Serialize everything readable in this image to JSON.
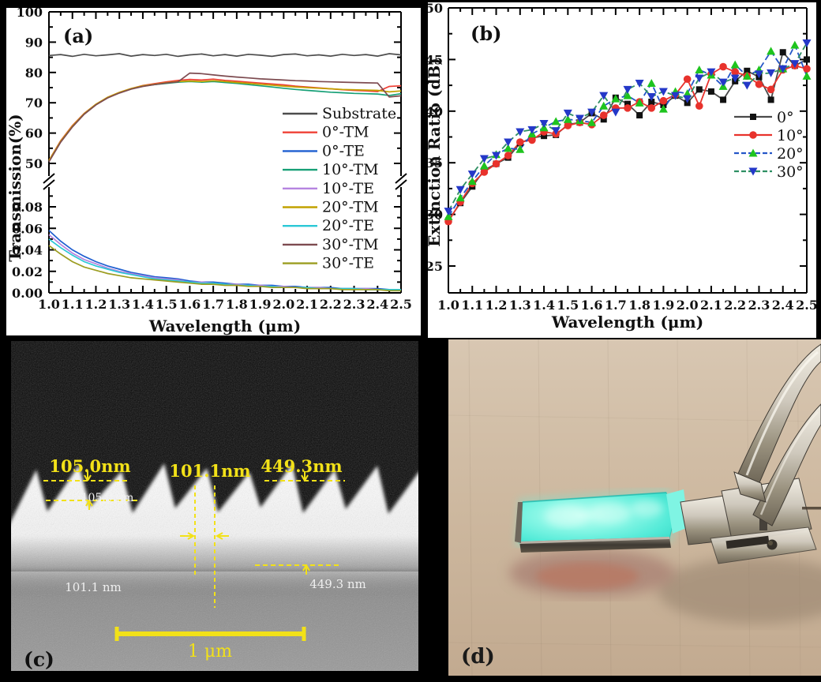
{
  "figure": {
    "panels": {
      "a": {
        "label": "(a)"
      },
      "b": {
        "label": "(b)"
      },
      "c": {
        "label": "(c)"
      },
      "d": {
        "label": "(d)"
      }
    }
  },
  "panel_c": {
    "label": "(c)",
    "annotation_color": "#f2e118",
    "measurements_top": [
      "105.0nm",
      "101.1nm",
      "449.3nm"
    ],
    "measurements_inner": [
      "105.0 nm",
      "101.1 nm",
      "449.3 nm"
    ],
    "scale_bar_label": "1 μm"
  },
  "panel_d": {
    "label": "(d)",
    "glow_color": "#55ecd9",
    "paper_color": "#cdb89f"
  },
  "chart_data": [
    {
      "panel": "a",
      "type": "line",
      "xlabel": "Wavelength (μm)",
      "ylabel": "Transmission(%)",
      "x_ticks": [
        1.0,
        1.1,
        1.2,
        1.3,
        1.4,
        1.5,
        1.6,
        1.7,
        1.8,
        1.9,
        2.0,
        2.1,
        2.2,
        2.3,
        2.4,
        2.5
      ],
      "x_minor_step": 0.05,
      "y_axis_broken": true,
      "y_upper": {
        "range": [
          50,
          100
        ],
        "ticks": [
          50,
          60,
          70,
          80,
          90,
          100
        ],
        "minor_ticks": [
          55,
          65,
          75,
          85,
          95
        ]
      },
      "y_lower": {
        "range": [
          0,
          0.09
        ],
        "ticks": [
          0.0,
          0.02,
          0.04,
          0.06,
          0.08
        ],
        "minor_ticks": [
          0.01,
          0.03,
          0.05,
          0.07,
          0.09
        ]
      },
      "legend_position": "middle-right",
      "grid": false,
      "x": [
        1.0,
        1.05,
        1.1,
        1.15,
        1.2,
        1.25,
        1.3,
        1.35,
        1.4,
        1.45,
        1.5,
        1.55,
        1.6,
        1.65,
        1.7,
        1.75,
        1.8,
        1.85,
        1.9,
        1.95,
        2.0,
        2.05,
        2.1,
        2.15,
        2.2,
        2.25,
        2.3,
        2.35,
        2.4,
        2.45,
        2.5
      ],
      "series": [
        {
          "name": "Substrate",
          "color": "#4d4d4d",
          "segment": "upper",
          "values": [
            85.6,
            85.9,
            85.3,
            86.0,
            85.5,
            85.8,
            86.2,
            85.4,
            85.9,
            85.6,
            86.0,
            85.3,
            85.8,
            86.1,
            85.5,
            85.9,
            85.4,
            86.0,
            85.7,
            85.3,
            85.9,
            86.1,
            85.5,
            85.8,
            85.4,
            86.0,
            85.6,
            85.9,
            85.4,
            86.2,
            85.8
          ]
        },
        {
          "name": "0°-TM",
          "color": "#ef4136",
          "segment": "upper",
          "values": [
            51.0,
            57.5,
            62.5,
            66.5,
            69.5,
            71.8,
            73.4,
            74.7,
            75.7,
            76.3,
            76.9,
            77.4,
            77.7,
            77.5,
            77.8,
            77.4,
            77.1,
            76.8,
            76.5,
            76.2,
            75.9,
            75.5,
            75.2,
            74.9,
            74.6,
            74.3,
            74.1,
            73.9,
            73.7,
            75.4,
            75.6
          ]
        },
        {
          "name": "0°-TE",
          "color": "#1f5fd0",
          "segment": "lower",
          "values": [
            0.058,
            0.048,
            0.04,
            0.034,
            0.029,
            0.025,
            0.022,
            0.019,
            0.017,
            0.015,
            0.014,
            0.013,
            0.011,
            0.01,
            0.01,
            0.009,
            0.008,
            0.008,
            0.007,
            0.007,
            0.006,
            0.006,
            0.005,
            0.005,
            0.005,
            0.004,
            0.004,
            0.004,
            0.004,
            0.003,
            0.003
          ]
        },
        {
          "name": "10°-TM",
          "color": "#17a077",
          "segment": "upper",
          "values": [
            50.8,
            57.2,
            62.2,
            66.3,
            69.4,
            71.7,
            73.3,
            74.6,
            75.5,
            76.0,
            76.4,
            76.8,
            77.0,
            76.8,
            77.0,
            76.7,
            76.4,
            76.0,
            75.6,
            75.2,
            74.8,
            74.4,
            74.1,
            73.8,
            73.5,
            73.3,
            73.1,
            73.0,
            72.9,
            72.4,
            73.0
          ]
        },
        {
          "name": "10°-TE",
          "color": "#b684e0",
          "segment": "lower",
          "values": [
            0.054,
            0.045,
            0.037,
            0.031,
            0.027,
            0.023,
            0.02,
            0.018,
            0.016,
            0.014,
            0.013,
            0.012,
            0.01,
            0.01,
            0.009,
            0.008,
            0.008,
            0.007,
            0.007,
            0.006,
            0.006,
            0.005,
            0.005,
            0.005,
            0.004,
            0.004,
            0.004,
            0.004,
            0.003,
            0.003,
            0.003
          ]
        },
        {
          "name": "20°-TM",
          "color": "#c2a200",
          "segment": "upper",
          "values": [
            50.9,
            57.3,
            62.3,
            66.4,
            69.5,
            71.8,
            73.4,
            74.7,
            75.6,
            76.1,
            76.6,
            77.0,
            77.2,
            77.0,
            77.3,
            77.0,
            76.7,
            76.4,
            76.1,
            75.8,
            75.5,
            75.2,
            75.0,
            74.8,
            74.6,
            74.4,
            74.3,
            74.2,
            74.1,
            73.6,
            73.9
          ]
        },
        {
          "name": "20°-TE",
          "color": "#2bc8d6",
          "segment": "lower",
          "values": [
            0.05,
            0.042,
            0.035,
            0.029,
            0.025,
            0.022,
            0.019,
            0.017,
            0.015,
            0.013,
            0.012,
            0.011,
            0.01,
            0.009,
            0.009,
            0.008,
            0.007,
            0.007,
            0.006,
            0.006,
            0.005,
            0.005,
            0.005,
            0.004,
            0.004,
            0.004,
            0.004,
            0.003,
            0.003,
            0.003,
            0.003
          ]
        },
        {
          "name": "30°-TM",
          "color": "#7d4b50",
          "segment": "upper",
          "values": [
            50.5,
            57.0,
            62.0,
            66.2,
            69.3,
            71.6,
            73.2,
            74.5,
            75.4,
            76.0,
            76.5,
            76.9,
            79.8,
            79.6,
            79.2,
            78.8,
            78.5,
            78.2,
            77.9,
            77.7,
            77.5,
            77.3,
            77.2,
            77.0,
            76.9,
            76.8,
            76.7,
            76.6,
            76.5,
            71.9,
            72.3
          ]
        },
        {
          "name": "30°-TE",
          "color": "#9c9d21",
          "segment": "lower",
          "values": [
            0.044,
            0.036,
            0.029,
            0.024,
            0.021,
            0.018,
            0.016,
            0.014,
            0.013,
            0.012,
            0.011,
            0.01,
            0.009,
            0.008,
            0.008,
            0.007,
            0.007,
            0.006,
            0.006,
            0.005,
            0.005,
            0.005,
            0.004,
            0.004,
            0.004,
            0.003,
            0.003,
            0.003,
            0.003,
            0.002,
            0.002
          ]
        }
      ]
    },
    {
      "panel": "b",
      "type": "scatter",
      "xlabel": "Wavelength (μm)",
      "ylabel": "Extinction Ratio (dB)",
      "x_ticks": [
        1.0,
        1.1,
        1.2,
        1.3,
        1.4,
        1.5,
        1.6,
        1.7,
        1.8,
        1.9,
        2.0,
        2.1,
        2.2,
        2.3,
        2.4,
        2.5
      ],
      "x_minor_step": 0.05,
      "ylim": [
        22.3,
        50
      ],
      "y_ticks": [
        25,
        30,
        35,
        40,
        45,
        50
      ],
      "y_minor_ticks": [
        27.5,
        32.5,
        37.5,
        42.5,
        47.5
      ],
      "legend_position": "middle-right",
      "grid": false,
      "x": [
        1.0,
        1.05,
        1.1,
        1.15,
        1.2,
        1.25,
        1.3,
        1.35,
        1.4,
        1.45,
        1.5,
        1.55,
        1.6,
        1.65,
        1.7,
        1.75,
        1.8,
        1.85,
        1.9,
        1.95,
        2.0,
        2.05,
        2.1,
        2.15,
        2.2,
        2.25,
        2.3,
        2.35,
        2.4,
        2.45,
        2.5
      ],
      "series": [
        {
          "name": "0°",
          "marker": "square",
          "marker_color": "#111111",
          "line_color": "#4a4a4a",
          "dash": "none",
          "values": [
            29.4,
            31.1,
            32.7,
            34.3,
            34.9,
            35.5,
            36.9,
            37.4,
            37.6,
            37.7,
            38.7,
            38.9,
            39.8,
            39.2,
            41.3,
            40.7,
            39.6,
            40.9,
            40.6,
            41.5,
            40.8,
            42.1,
            41.9,
            41.1,
            42.9,
            43.9,
            43.3,
            41.1,
            45.7,
            44.4,
            45.0
          ]
        },
        {
          "name": "10°",
          "marker": "circle",
          "marker_color": "#e8322c",
          "line_color": "#e8322c",
          "dash": "none",
          "values": [
            29.3,
            31.2,
            33.0,
            34.1,
            34.9,
            35.7,
            37.0,
            37.2,
            38.0,
            37.8,
            38.6,
            38.9,
            38.7,
            39.6,
            40.3,
            40.3,
            40.9,
            40.3,
            41.0,
            41.6,
            43.1,
            40.5,
            43.6,
            44.3,
            43.8,
            43.4,
            42.6,
            42.1,
            44.0,
            44.4,
            44.1
          ]
        },
        {
          "name": "20°",
          "marker": "triangle-up",
          "marker_color": "#1ec41e",
          "line_color": "#2456c8",
          "dash": "8 4",
          "values": [
            29.8,
            31.6,
            33.2,
            34.7,
            35.8,
            36.4,
            36.3,
            37.8,
            38.4,
            39.0,
            39.2,
            39.1,
            38.9,
            40.5,
            41.2,
            41.5,
            40.8,
            42.7,
            40.2,
            41.9,
            41.7,
            44.0,
            43.5,
            42.4,
            44.5,
            43.4,
            44.0,
            45.8,
            44.1,
            46.4,
            43.4
          ]
        },
        {
          "name": "30°",
          "marker": "triangle-down",
          "marker_color": "#2438c8",
          "line_color": "#2e8f63",
          "dash": "8 4",
          "values": [
            30.3,
            32.4,
            33.9,
            35.4,
            35.7,
            37.0,
            38.0,
            38.2,
            38.8,
            38.1,
            39.8,
            39.3,
            39.9,
            41.5,
            39.9,
            42.1,
            42.7,
            41.4,
            41.9,
            41.5,
            41.2,
            43.2,
            43.8,
            42.8,
            43.2,
            42.5,
            43.6,
            43.7,
            44.1,
            44.6,
            46.6
          ]
        }
      ]
    }
  ]
}
